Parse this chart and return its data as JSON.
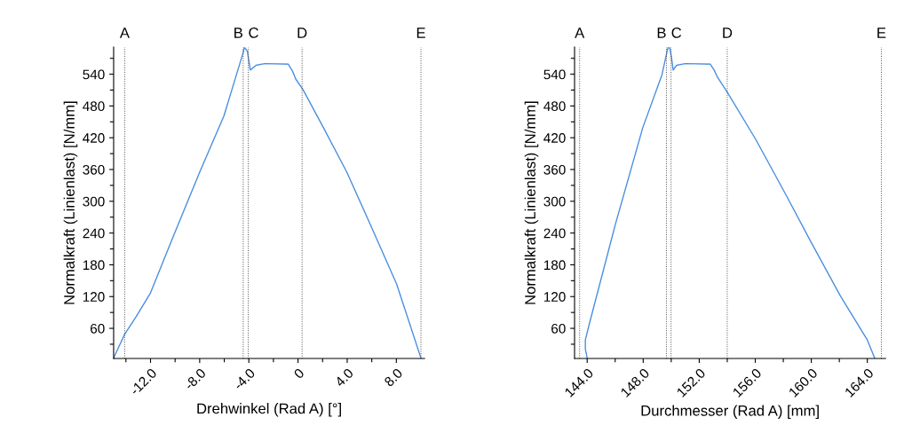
{
  "chart_data": [
    {
      "type": "line",
      "xlabel": "Drehwinkel (Rad A) [°]",
      "ylabel": "Normalkraft (Linienlast) [N/mm]",
      "series": [
        {
          "color": "#4a8fe0",
          "x": [
            -15.0,
            -14.6,
            -14.1,
            -13.17,
            -12.0,
            -10.07,
            -8.0,
            -6.03,
            -4.46,
            -4.36,
            -4.12,
            -3.88,
            -3.4,
            -2.69,
            -0.79,
            -0.43,
            -0.19,
            0.4,
            2.07,
            3.97,
            6.0,
            8.02,
            10.0
          ],
          "values": [
            4,
            24,
            49,
            82,
            127,
            238,
            355,
            461,
            581,
            591,
            583,
            548,
            557,
            560,
            559,
            545,
            531,
            511,
            439,
            355,
            250,
            144,
            4
          ]
        }
      ],
      "xlim": [
        -15,
        10.3
      ],
      "xticks": [
        {
          "value": -14,
          "label": null
        },
        {
          "value": -12,
          "label": "-12.0"
        },
        {
          "value": -10,
          "label": null
        },
        {
          "value": -8,
          "label": "-8.0"
        },
        {
          "value": -6,
          "label": null
        },
        {
          "value": -4,
          "label": "-4.0"
        },
        {
          "value": -2,
          "label": null
        },
        0,
        {
          "value": 2,
          "label": null
        },
        {
          "value": 4,
          "label": "4.0"
        },
        {
          "value": 6,
          "label": null
        },
        {
          "value": 8,
          "label": "8.0"
        }
      ],
      "ylim": [
        3,
        591
      ],
      "yticks": [
        {
          "value": 30,
          "label": null
        },
        60,
        {
          "value": 90,
          "label": null
        },
        120,
        {
          "value": 150,
          "label": null
        },
        180,
        {
          "value": 210,
          "label": null
        },
        240,
        {
          "value": 270,
          "label": null
        },
        300,
        {
          "value": 330,
          "label": null
        },
        360,
        {
          "value": 390,
          "label": null
        },
        420,
        {
          "value": 450,
          "label": null
        },
        480,
        {
          "value": 510,
          "label": null
        },
        540,
        {
          "value": 570,
          "label": null
        }
      ],
      "ref_lines": [
        {
          "axis": "x",
          "value": -14.1,
          "label": "A",
          "line_style": "dotted"
        },
        {
          "axis": "x",
          "value": -4.46,
          "label": "B",
          "line_style": "dotted"
        },
        {
          "axis": "x",
          "value": -4.05,
          "label": "C",
          "line_style": "dotted"
        },
        {
          "axis": "x",
          "value": 0.33,
          "label": "D",
          "line_style": "dotted"
        },
        {
          "axis": "x",
          "value": 10.0,
          "label": "E",
          "line_style": "dotted"
        }
      ],
      "grid": false,
      "marker": "none",
      "line_style": "solid"
    },
    {
      "type": "line",
      "xlabel": "Durchmesser (Rad A) [mm]",
      "ylabel": "Normalkraft (Linienlast) [N/mm]",
      "series": [
        {
          "color": "#4a8fe0",
          "x": [
            144.0,
            143.87,
            143.87,
            144.13,
            146.0,
            147.97,
            149.34,
            149.76,
            149.89,
            150.01,
            150.14,
            150.39,
            151.01,
            152.79,
            153.06,
            153.31,
            154.0,
            156.03,
            158.11,
            160.0,
            162.08,
            164.0,
            164.52
          ],
          "values": [
            4,
            21,
            38,
            66,
            255,
            439,
            539,
            590,
            590,
            573,
            548,
            557,
            560,
            559,
            548,
            534,
            506,
            417,
            316,
            222,
            121,
            38,
            4
          ]
        }
      ],
      "xlim": [
        143.1,
        165.3
      ],
      "xticks": [
        {
          "value": 144,
          "label": "144.0"
        },
        {
          "value": 146,
          "label": null
        },
        {
          "value": 148,
          "label": "148.0"
        },
        {
          "value": 150,
          "label": null
        },
        {
          "value": 152,
          "label": "152.0"
        },
        {
          "value": 154,
          "label": null
        },
        {
          "value": 156,
          "label": "156.0"
        },
        {
          "value": 158,
          "label": null
        },
        {
          "value": 160,
          "label": "160.0"
        },
        {
          "value": 162,
          "label": null
        },
        {
          "value": 164,
          "label": "164.0"
        }
      ],
      "ylim": [
        3,
        591
      ],
      "yticks": [
        {
          "value": 30,
          "label": null
        },
        60,
        {
          "value": 90,
          "label": null
        },
        120,
        {
          "value": 150,
          "label": null
        },
        180,
        {
          "value": 210,
          "label": null
        },
        240,
        {
          "value": 270,
          "label": null
        },
        300,
        {
          "value": 330,
          "label": null
        },
        360,
        {
          "value": 390,
          "label": null
        },
        420,
        {
          "value": 450,
          "label": null
        },
        480,
        {
          "value": 510,
          "label": null
        },
        540,
        {
          "value": 570,
          "label": null
        }
      ],
      "ref_lines": [
        {
          "axis": "x",
          "value": 143.46,
          "label": "A",
          "line_style": "dotted"
        },
        {
          "axis": "x",
          "value": 149.66,
          "label": "B",
          "line_style": "dotted"
        },
        {
          "axis": "x",
          "value": 149.99,
          "label": "C",
          "line_style": "dotted"
        },
        {
          "axis": "x",
          "value": 154.0,
          "label": "D",
          "line_style": "dotted"
        },
        {
          "axis": "x",
          "value": 165.0,
          "label": "E",
          "line_style": "dotted"
        }
      ],
      "grid": false,
      "marker": "none",
      "line_style": "solid"
    }
  ]
}
